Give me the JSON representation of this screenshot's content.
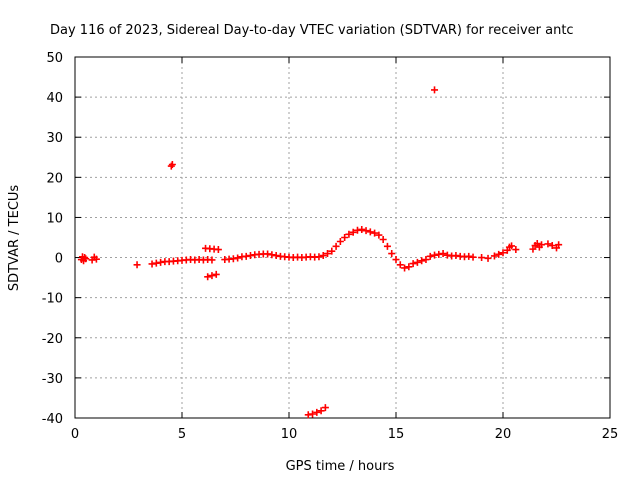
{
  "chart_data": {
    "type": "scatter",
    "title": "Day 116 of 2023, Sidereal Day-to-day VTEC variation (SDTVAR) for receiver antc",
    "xlabel": "GPS time / hours",
    "ylabel": "SDTVAR / TECUs",
    "xlim": [
      0,
      25
    ],
    "ylim": [
      -40,
      50
    ],
    "xticks": [
      0,
      5,
      10,
      15,
      20,
      25
    ],
    "yticks": [
      -40,
      -30,
      -20,
      -10,
      0,
      10,
      20,
      30,
      40,
      50
    ],
    "xtick_labels": [
      "0",
      "5",
      "10",
      "15",
      "20",
      "25"
    ],
    "ytick_labels": [
      "-40",
      "-30",
      "-20",
      "-10",
      "0",
      "10",
      "20",
      "30",
      "40",
      "50"
    ],
    "grid": true,
    "marker": "+",
    "series": [
      {
        "name": "SDTVAR",
        "color": "#ff0000",
        "points": [
          [
            0.3,
            -0.5
          ],
          [
            0.35,
            0.2
          ],
          [
            0.4,
            -0.8
          ],
          [
            0.45,
            0.0
          ],
          [
            0.5,
            -0.3
          ],
          [
            0.8,
            -0.6
          ],
          [
            0.9,
            0.1
          ],
          [
            1.0,
            -0.4
          ],
          [
            2.9,
            -1.8
          ],
          [
            3.6,
            -1.6
          ],
          [
            3.8,
            -1.4
          ],
          [
            4.0,
            -1.2
          ],
          [
            4.2,
            -1.0
          ],
          [
            4.4,
            -1.0
          ],
          [
            4.6,
            -0.9
          ],
          [
            4.5,
            22.8
          ],
          [
            4.55,
            23.2
          ],
          [
            4.8,
            -0.8
          ],
          [
            5.0,
            -0.7
          ],
          [
            5.2,
            -0.6
          ],
          [
            5.4,
            -0.5
          ],
          [
            5.6,
            -0.6
          ],
          [
            5.8,
            -0.5
          ],
          [
            6.0,
            -0.6
          ],
          [
            6.2,
            -0.5
          ],
          [
            6.4,
            -0.6
          ],
          [
            6.1,
            2.3
          ],
          [
            6.3,
            2.2
          ],
          [
            6.5,
            2.1
          ],
          [
            6.7,
            2.0
          ],
          [
            6.2,
            -4.8
          ],
          [
            6.4,
            -4.5
          ],
          [
            6.6,
            -4.2
          ],
          [
            7.0,
            -0.5
          ],
          [
            7.2,
            -0.4
          ],
          [
            7.4,
            -0.3
          ],
          [
            7.6,
            -0.1
          ],
          [
            7.8,
            0.2
          ],
          [
            8.0,
            0.3
          ],
          [
            8.2,
            0.5
          ],
          [
            8.4,
            0.7
          ],
          [
            8.6,
            0.8
          ],
          [
            8.8,
            0.9
          ],
          [
            9.0,
            0.9
          ],
          [
            9.2,
            0.7
          ],
          [
            9.4,
            0.5
          ],
          [
            9.6,
            0.3
          ],
          [
            9.8,
            0.2
          ],
          [
            10.0,
            0.1
          ],
          [
            10.2,
            0.0
          ],
          [
            10.4,
            0.1
          ],
          [
            10.6,
            0.0
          ],
          [
            10.8,
            0.1
          ],
          [
            11.0,
            0.2
          ],
          [
            11.2,
            0.1
          ],
          [
            11.4,
            0.2
          ],
          [
            11.6,
            0.5
          ],
          [
            10.9,
            -39.2
          ],
          [
            11.1,
            -39.0
          ],
          [
            11.3,
            -38.6
          ],
          [
            11.5,
            -38.2
          ],
          [
            11.7,
            -37.4
          ],
          [
            11.8,
            1.0
          ],
          [
            12.0,
            1.6
          ],
          [
            12.2,
            2.8
          ],
          [
            12.4,
            4.0
          ],
          [
            12.6,
            5.0
          ],
          [
            12.8,
            5.8
          ],
          [
            13.0,
            6.3
          ],
          [
            13.2,
            6.8
          ],
          [
            13.4,
            7.0
          ],
          [
            13.6,
            6.7
          ],
          [
            13.8,
            6.4
          ],
          [
            14.0,
            6.1
          ],
          [
            14.2,
            5.6
          ],
          [
            14.4,
            4.5
          ],
          [
            14.6,
            2.8
          ],
          [
            14.8,
            1.0
          ],
          [
            15.0,
            -0.5
          ],
          [
            15.2,
            -1.8
          ],
          [
            15.4,
            -2.6
          ],
          [
            15.6,
            -2.3
          ],
          [
            15.8,
            -1.5
          ],
          [
            16.0,
            -1.2
          ],
          [
            16.2,
            -0.8
          ],
          [
            16.4,
            -0.5
          ],
          [
            16.6,
            0.3
          ],
          [
            16.8,
            0.6
          ],
          [
            17.0,
            0.8
          ],
          [
            17.2,
            1.0
          ],
          [
            17.4,
            0.6
          ],
          [
            17.6,
            0.4
          ],
          [
            17.8,
            0.5
          ],
          [
            18.0,
            0.3
          ],
          [
            18.2,
            0.2
          ],
          [
            18.4,
            0.3
          ],
          [
            18.6,
            0.1
          ],
          [
            16.8,
            41.8
          ],
          [
            19.0,
            0.0
          ],
          [
            19.3,
            -0.2
          ],
          [
            19.6,
            0.4
          ],
          [
            19.8,
            0.8
          ],
          [
            20.0,
            1.2
          ],
          [
            20.2,
            1.8
          ],
          [
            20.3,
            2.6
          ],
          [
            20.4,
            2.9
          ],
          [
            20.6,
            2.0
          ],
          [
            21.4,
            2.1
          ],
          [
            21.5,
            3.0
          ],
          [
            21.6,
            3.5
          ],
          [
            21.7,
            2.6
          ],
          [
            21.8,
            3.2
          ],
          [
            22.1,
            3.4
          ],
          [
            22.3,
            3.0
          ],
          [
            22.5,
            2.4
          ],
          [
            22.6,
            3.2
          ]
        ]
      }
    ]
  }
}
